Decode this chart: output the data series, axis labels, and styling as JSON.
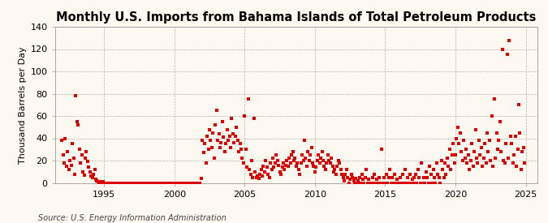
{
  "title": "Monthly U.S. Imports from Bahama Islands of Total Petroleum Products",
  "ylabel": "Thousand Barrels per Day",
  "source": "Source: U.S. Energy Information Administration",
  "ylim": [
    0,
    140
  ],
  "yticks": [
    0,
    20,
    40,
    60,
    80,
    100,
    120,
    140
  ],
  "xlim_start": 1991.5,
  "xlim_end": 2025.8,
  "xticks": [
    1995,
    2000,
    2005,
    2010,
    2015,
    2020,
    2025
  ],
  "marker_color": "#dd0000",
  "background_color": "#fef9f0",
  "grid_color": "#aaaaaa",
  "title_fontsize": 10.5,
  "axis_fontsize": 8,
  "source_fontsize": 7,
  "data_points": [
    [
      1992.0,
      38
    ],
    [
      1992.08,
      25
    ],
    [
      1992.17,
      18
    ],
    [
      1992.25,
      40
    ],
    [
      1992.33,
      15
    ],
    [
      1992.42,
      28
    ],
    [
      1992.5,
      12
    ],
    [
      1992.58,
      20
    ],
    [
      1992.67,
      16
    ],
    [
      1992.75,
      35
    ],
    [
      1992.83,
      22
    ],
    [
      1992.92,
      8
    ],
    [
      1993.0,
      78
    ],
    [
      1993.08,
      55
    ],
    [
      1993.17,
      52
    ],
    [
      1993.25,
      30
    ],
    [
      1993.33,
      18
    ],
    [
      1993.42,
      25
    ],
    [
      1993.5,
      10
    ],
    [
      1993.58,
      7
    ],
    [
      1993.67,
      22
    ],
    [
      1993.75,
      28
    ],
    [
      1993.83,
      19
    ],
    [
      1993.92,
      14
    ],
    [
      1994.0,
      10
    ],
    [
      1994.08,
      6
    ],
    [
      1994.17,
      5
    ],
    [
      1994.25,
      8
    ],
    [
      1994.33,
      12
    ],
    [
      1994.42,
      3
    ],
    [
      1994.5,
      2
    ],
    [
      1994.58,
      1
    ],
    [
      1994.67,
      0
    ],
    [
      1994.75,
      1
    ],
    [
      1994.83,
      0
    ],
    [
      1994.92,
      1
    ],
    [
      1995.0,
      0
    ],
    [
      1995.08,
      0
    ],
    [
      1995.17,
      0
    ],
    [
      1995.25,
      0
    ],
    [
      1995.33,
      0
    ],
    [
      1995.42,
      0
    ],
    [
      1995.5,
      0
    ],
    [
      1995.58,
      0
    ],
    [
      1995.67,
      0
    ],
    [
      1995.75,
      0
    ],
    [
      1995.83,
      0
    ],
    [
      1995.92,
      0
    ],
    [
      1996.0,
      0
    ],
    [
      1996.08,
      0
    ],
    [
      1996.17,
      0
    ],
    [
      1996.25,
      0
    ],
    [
      1996.33,
      0
    ],
    [
      1996.42,
      0
    ],
    [
      1996.5,
      0
    ],
    [
      1996.58,
      0
    ],
    [
      1996.67,
      0
    ],
    [
      1996.75,
      0
    ],
    [
      1996.83,
      0
    ],
    [
      1996.92,
      0
    ],
    [
      1997.0,
      0
    ],
    [
      1997.08,
      0
    ],
    [
      1997.17,
      0
    ],
    [
      1997.25,
      0
    ],
    [
      1997.33,
      0
    ],
    [
      1997.42,
      0
    ],
    [
      1997.5,
      0
    ],
    [
      1997.58,
      0
    ],
    [
      1997.67,
      0
    ],
    [
      1997.75,
      0
    ],
    [
      1997.83,
      0
    ],
    [
      1997.92,
      0
    ],
    [
      1998.0,
      0
    ],
    [
      1998.08,
      0
    ],
    [
      1998.17,
      0
    ],
    [
      1998.25,
      0
    ],
    [
      1998.33,
      0
    ],
    [
      1998.42,
      0
    ],
    [
      1998.5,
      0
    ],
    [
      1998.58,
      0
    ],
    [
      1998.67,
      0
    ],
    [
      1998.75,
      0
    ],
    [
      1998.83,
      0
    ],
    [
      1998.92,
      0
    ],
    [
      1999.0,
      0
    ],
    [
      1999.08,
      0
    ],
    [
      1999.17,
      0
    ],
    [
      1999.25,
      0
    ],
    [
      1999.33,
      0
    ],
    [
      1999.42,
      0
    ],
    [
      1999.5,
      0
    ],
    [
      1999.58,
      0
    ],
    [
      1999.67,
      0
    ],
    [
      1999.75,
      0
    ],
    [
      1999.83,
      0
    ],
    [
      1999.92,
      0
    ],
    [
      2000.0,
      0
    ],
    [
      2000.08,
      0
    ],
    [
      2000.17,
      0
    ],
    [
      2000.25,
      0
    ],
    [
      2000.33,
      0
    ],
    [
      2000.42,
      0
    ],
    [
      2000.5,
      0
    ],
    [
      2000.58,
      0
    ],
    [
      2000.67,
      0
    ],
    [
      2000.75,
      0
    ],
    [
      2000.83,
      0
    ],
    [
      2000.92,
      0
    ],
    [
      2001.0,
      0
    ],
    [
      2001.08,
      0
    ],
    [
      2001.17,
      0
    ],
    [
      2001.25,
      0
    ],
    [
      2001.33,
      0
    ],
    [
      2001.42,
      0
    ],
    [
      2001.5,
      0
    ],
    [
      2001.58,
      0
    ],
    [
      2001.67,
      0
    ],
    [
      2001.75,
      0
    ],
    [
      2001.83,
      0
    ],
    [
      2001.92,
      4
    ],
    [
      2002.0,
      38
    ],
    [
      2002.08,
      27
    ],
    [
      2002.17,
      35
    ],
    [
      2002.25,
      18
    ],
    [
      2002.33,
      42
    ],
    [
      2002.42,
      30
    ],
    [
      2002.5,
      48
    ],
    [
      2002.58,
      38
    ],
    [
      2002.67,
      32
    ],
    [
      2002.75,
      45
    ],
    [
      2002.83,
      22
    ],
    [
      2002.92,
      52
    ],
    [
      2003.0,
      65
    ],
    [
      2003.08,
      38
    ],
    [
      2003.17,
      44
    ],
    [
      2003.25,
      32
    ],
    [
      2003.33,
      36
    ],
    [
      2003.42,
      55
    ],
    [
      2003.5,
      41
    ],
    [
      2003.58,
      28
    ],
    [
      2003.67,
      35
    ],
    [
      2003.75,
      48
    ],
    [
      2003.83,
      38
    ],
    [
      2003.92,
      42
    ],
    [
      2004.0,
      32
    ],
    [
      2004.08,
      58
    ],
    [
      2004.17,
      44
    ],
    [
      2004.25,
      36
    ],
    [
      2004.33,
      42
    ],
    [
      2004.42,
      50
    ],
    [
      2004.5,
      38
    ],
    [
      2004.58,
      28
    ],
    [
      2004.67,
      35
    ],
    [
      2004.75,
      30
    ],
    [
      2004.83,
      22
    ],
    [
      2004.92,
      18
    ],
    [
      2005.0,
      60
    ],
    [
      2005.08,
      30
    ],
    [
      2005.17,
      14
    ],
    [
      2005.25,
      75
    ],
    [
      2005.33,
      12
    ],
    [
      2005.42,
      8
    ],
    [
      2005.5,
      20
    ],
    [
      2005.58,
      5
    ],
    [
      2005.67,
      58
    ],
    [
      2005.75,
      10
    ],
    [
      2005.83,
      5
    ],
    [
      2005.92,
      6
    ],
    [
      2006.0,
      4
    ],
    [
      2006.08,
      8
    ],
    [
      2006.17,
      12
    ],
    [
      2006.25,
      6
    ],
    [
      2006.33,
      15
    ],
    [
      2006.42,
      10
    ],
    [
      2006.5,
      20
    ],
    [
      2006.58,
      14
    ],
    [
      2006.67,
      8
    ],
    [
      2006.75,
      5
    ],
    [
      2006.83,
      18
    ],
    [
      2006.92,
      12
    ],
    [
      2007.0,
      22
    ],
    [
      2007.08,
      14
    ],
    [
      2007.17,
      18
    ],
    [
      2007.25,
      25
    ],
    [
      2007.33,
      20
    ],
    [
      2007.42,
      16
    ],
    [
      2007.5,
      10
    ],
    [
      2007.58,
      8
    ],
    [
      2007.67,
      14
    ],
    [
      2007.75,
      18
    ],
    [
      2007.83,
      12
    ],
    [
      2007.92,
      16
    ],
    [
      2008.0,
      20
    ],
    [
      2008.08,
      15
    ],
    [
      2008.17,
      22
    ],
    [
      2008.25,
      18
    ],
    [
      2008.33,
      25
    ],
    [
      2008.42,
      28
    ],
    [
      2008.5,
      20
    ],
    [
      2008.58,
      22
    ],
    [
      2008.67,
      15
    ],
    [
      2008.75,
      18
    ],
    [
      2008.83,
      12
    ],
    [
      2008.92,
      8
    ],
    [
      2009.0,
      18
    ],
    [
      2009.08,
      25
    ],
    [
      2009.17,
      20
    ],
    [
      2009.25,
      38
    ],
    [
      2009.33,
      22
    ],
    [
      2009.42,
      15
    ],
    [
      2009.5,
      28
    ],
    [
      2009.58,
      20
    ],
    [
      2009.67,
      25
    ],
    [
      2009.75,
      32
    ],
    [
      2009.83,
      18
    ],
    [
      2009.92,
      15
    ],
    [
      2010.0,
      10
    ],
    [
      2010.08,
      14
    ],
    [
      2010.17,
      20
    ],
    [
      2010.25,
      25
    ],
    [
      2010.33,
      18
    ],
    [
      2010.42,
      22
    ],
    [
      2010.5,
      28
    ],
    [
      2010.58,
      20
    ],
    [
      2010.67,
      15
    ],
    [
      2010.75,
      12
    ],
    [
      2010.83,
      18
    ],
    [
      2010.92,
      25
    ],
    [
      2011.0,
      20
    ],
    [
      2011.08,
      18
    ],
    [
      2011.17,
      22
    ],
    [
      2011.25,
      15
    ],
    [
      2011.33,
      10
    ],
    [
      2011.42,
      12
    ],
    [
      2011.5,
      8
    ],
    [
      2011.58,
      15
    ],
    [
      2011.67,
      20
    ],
    [
      2011.75,
      18
    ],
    [
      2011.83,
      12
    ],
    [
      2011.92,
      8
    ],
    [
      2012.0,
      5
    ],
    [
      2012.08,
      2
    ],
    [
      2012.17,
      8
    ],
    [
      2012.25,
      12
    ],
    [
      2012.33,
      5
    ],
    [
      2012.42,
      0
    ],
    [
      2012.5,
      3
    ],
    [
      2012.58,
      8
    ],
    [
      2012.67,
      5
    ],
    [
      2012.75,
      2
    ],
    [
      2012.83,
      0
    ],
    [
      2012.92,
      4
    ],
    [
      2013.0,
      0
    ],
    [
      2013.08,
      2
    ],
    [
      2013.17,
      5
    ],
    [
      2013.25,
      0
    ],
    [
      2013.33,
      8
    ],
    [
      2013.42,
      3
    ],
    [
      2013.5,
      0
    ],
    [
      2013.58,
      5
    ],
    [
      2013.67,
      12
    ],
    [
      2013.75,
      0
    ],
    [
      2013.83,
      3
    ],
    [
      2013.92,
      0
    ],
    [
      2014.0,
      0
    ],
    [
      2014.08,
      5
    ],
    [
      2014.17,
      0
    ],
    [
      2014.25,
      8
    ],
    [
      2014.33,
      0
    ],
    [
      2014.42,
      3
    ],
    [
      2014.5,
      0
    ],
    [
      2014.58,
      5
    ],
    [
      2014.67,
      0
    ],
    [
      2014.75,
      30
    ],
    [
      2014.83,
      0
    ],
    [
      2014.92,
      5
    ],
    [
      2015.0,
      0
    ],
    [
      2015.08,
      8
    ],
    [
      2015.17,
      0
    ],
    [
      2015.25,
      5
    ],
    [
      2015.33,
      12
    ],
    [
      2015.42,
      0
    ],
    [
      2015.5,
      5
    ],
    [
      2015.58,
      0
    ],
    [
      2015.67,
      8
    ],
    [
      2015.75,
      0
    ],
    [
      2015.83,
      3
    ],
    [
      2015.92,
      0
    ],
    [
      2016.0,
      0
    ],
    [
      2016.08,
      5
    ],
    [
      2016.17,
      0
    ],
    [
      2016.25,
      8
    ],
    [
      2016.33,
      0
    ],
    [
      2016.42,
      12
    ],
    [
      2016.5,
      0
    ],
    [
      2016.58,
      5
    ],
    [
      2016.67,
      0
    ],
    [
      2016.75,
      8
    ],
    [
      2016.83,
      0
    ],
    [
      2016.92,
      3
    ],
    [
      2017.0,
      0
    ],
    [
      2017.08,
      5
    ],
    [
      2017.17,
      8
    ],
    [
      2017.25,
      0
    ],
    [
      2017.33,
      12
    ],
    [
      2017.42,
      5
    ],
    [
      2017.5,
      0
    ],
    [
      2017.58,
      18
    ],
    [
      2017.67,
      0
    ],
    [
      2017.75,
      5
    ],
    [
      2017.83,
      0
    ],
    [
      2017.92,
      10
    ],
    [
      2018.0,
      5
    ],
    [
      2018.08,
      0
    ],
    [
      2018.17,
      15
    ],
    [
      2018.25,
      8
    ],
    [
      2018.33,
      0
    ],
    [
      2018.42,
      12
    ],
    [
      2018.5,
      5
    ],
    [
      2018.58,
      0
    ],
    [
      2018.67,
      18
    ],
    [
      2018.75,
      8
    ],
    [
      2018.83,
      5
    ],
    [
      2018.92,
      0
    ],
    [
      2019.0,
      20
    ],
    [
      2019.08,
      12
    ],
    [
      2019.17,
      5
    ],
    [
      2019.25,
      18
    ],
    [
      2019.33,
      8
    ],
    [
      2019.42,
      22
    ],
    [
      2019.5,
      15
    ],
    [
      2019.58,
      30
    ],
    [
      2019.67,
      12
    ],
    [
      2019.75,
      25
    ],
    [
      2019.83,
      35
    ],
    [
      2019.92,
      18
    ],
    [
      2020.0,
      25
    ],
    [
      2020.08,
      40
    ],
    [
      2020.17,
      50
    ],
    [
      2020.25,
      35
    ],
    [
      2020.33,
      45
    ],
    [
      2020.42,
      28
    ],
    [
      2020.5,
      20
    ],
    [
      2020.58,
      38
    ],
    [
      2020.67,
      22
    ],
    [
      2020.75,
      30
    ],
    [
      2020.83,
      18
    ],
    [
      2020.92,
      25
    ],
    [
      2021.0,
      12
    ],
    [
      2021.08,
      20
    ],
    [
      2021.17,
      35
    ],
    [
      2021.25,
      15
    ],
    [
      2021.33,
      28
    ],
    [
      2021.42,
      48
    ],
    [
      2021.5,
      22
    ],
    [
      2021.58,
      18
    ],
    [
      2021.67,
      38
    ],
    [
      2021.75,
      25
    ],
    [
      2021.83,
      32
    ],
    [
      2021.92,
      15
    ],
    [
      2022.0,
      22
    ],
    [
      2022.08,
      35
    ],
    [
      2022.17,
      18
    ],
    [
      2022.25,
      45
    ],
    [
      2022.33,
      28
    ],
    [
      2022.42,
      38
    ],
    [
      2022.5,
      20
    ],
    [
      2022.58,
      60
    ],
    [
      2022.67,
      15
    ],
    [
      2022.75,
      75
    ],
    [
      2022.83,
      22
    ],
    [
      2022.92,
      45
    ],
    [
      2023.0,
      30
    ],
    [
      2023.08,
      38
    ],
    [
      2023.17,
      55
    ],
    [
      2023.25,
      28
    ],
    [
      2023.33,
      120
    ],
    [
      2023.42,
      20
    ],
    [
      2023.5,
      18
    ],
    [
      2023.58,
      35
    ],
    [
      2023.67,
      115
    ],
    [
      2023.75,
      22
    ],
    [
      2023.83,
      128
    ],
    [
      2023.92,
      42
    ],
    [
      2024.0,
      35
    ],
    [
      2024.08,
      18
    ],
    [
      2024.17,
      25
    ],
    [
      2024.25,
      42
    ],
    [
      2024.33,
      15
    ],
    [
      2024.42,
      30
    ],
    [
      2024.5,
      70
    ],
    [
      2024.58,
      45
    ],
    [
      2024.67,
      12
    ],
    [
      2024.75,
      28
    ],
    [
      2024.83,
      32
    ],
    [
      2024.92,
      18
    ]
  ]
}
